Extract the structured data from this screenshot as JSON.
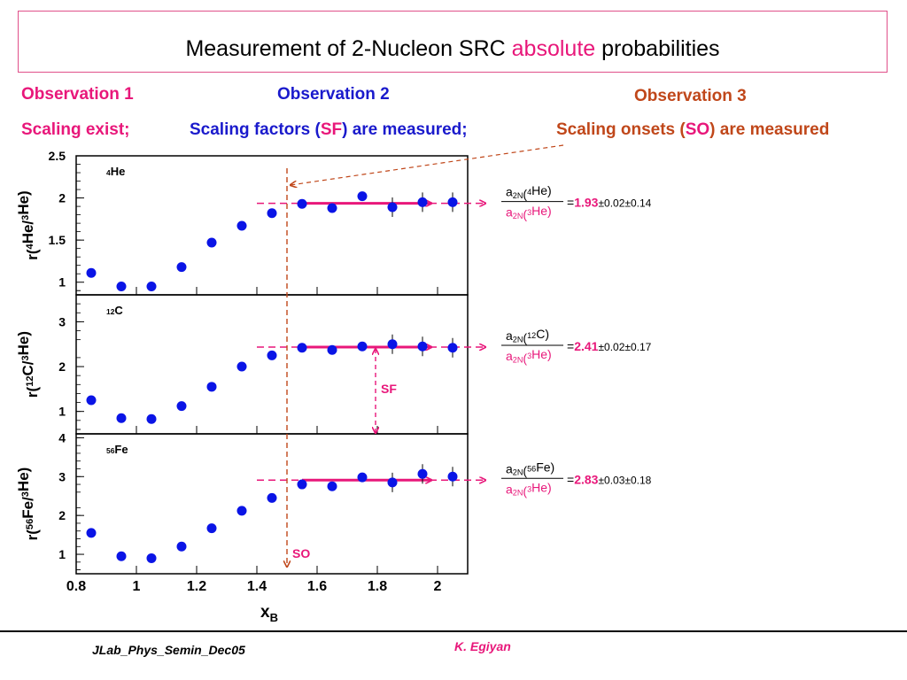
{
  "title": {
    "before": "Measurement of 2-Nucleon SRC ",
    "highlight": "absolute",
    "after": " probabilities"
  },
  "observations": {
    "obs1": {
      "heading": "Observation 1",
      "text": "Scaling exist;"
    },
    "obs2": {
      "heading": "Observation 2",
      "text_a": "Scaling factors (",
      "text_sf": "SF",
      "text_b": ") are measured;"
    },
    "obs3": {
      "heading": "Observation 3",
      "text_a": "Scaling onsets (",
      "text_so": "SO",
      "text_b": ") are measured"
    }
  },
  "colors": {
    "accent": "#e8177a",
    "blue": "#1a1acc",
    "orange": "#c0471a",
    "marker": "#0a14e6"
  },
  "annotations": {
    "sf": "SF",
    "so": "SO"
  },
  "footer": {
    "left": "JLab_Phys_Semin_Dec05",
    "right": "K. Egiyan"
  },
  "chart_data": [
    {
      "type": "scatter",
      "panel_label": "4He",
      "ylabel": "r(4He/3He)",
      "ylim": [
        0.85,
        2.5
      ],
      "yticks": [
        1,
        1.5,
        2,
        2.5
      ],
      "x": [
        0.85,
        0.95,
        1.05,
        1.15,
        1.25,
        1.35,
        1.45,
        1.55,
        1.65,
        1.75,
        1.85,
        1.95,
        2.05
      ],
      "y": [
        1.11,
        0.95,
        0.95,
        1.18,
        1.47,
        1.67,
        1.82,
        1.93,
        1.88,
        2.02,
        1.89,
        1.95,
        1.95
      ],
      "ratio": {
        "numerator": "a2N(4He)",
        "denominator": "a2N(3He)",
        "value": "1.93",
        "errors": "±0.02±0.14"
      }
    },
    {
      "type": "scatter",
      "panel_label": "12C",
      "ylabel": "r(12C/3He)",
      "ylim": [
        0.5,
        3.6
      ],
      "yticks": [
        1,
        2,
        3
      ],
      "x": [
        0.85,
        0.95,
        1.05,
        1.15,
        1.25,
        1.35,
        1.45,
        1.55,
        1.65,
        1.75,
        1.85,
        1.95,
        2.05
      ],
      "y": [
        1.25,
        0.85,
        0.83,
        1.12,
        1.55,
        2.0,
        2.25,
        2.42,
        2.37,
        2.45,
        2.5,
        2.45,
        2.42
      ],
      "ratio": {
        "numerator": "a2N(12C)",
        "denominator": "a2N(3He)",
        "value": "2.41",
        "errors": "±0.02±0.17"
      }
    },
    {
      "type": "scatter",
      "panel_label": "56Fe",
      "ylabel": "r(56Fe/3He)",
      "ylim": [
        0.5,
        4.1
      ],
      "yticks": [
        1,
        2,
        3,
        4
      ],
      "x": [
        0.85,
        0.95,
        1.05,
        1.15,
        1.25,
        1.35,
        1.45,
        1.55,
        1.65,
        1.75,
        1.85,
        1.95,
        2.05
      ],
      "y": [
        1.55,
        0.95,
        0.9,
        1.2,
        1.67,
        2.12,
        2.45,
        2.8,
        2.75,
        2.98,
        2.85,
        3.07,
        3.0
      ],
      "ratio": {
        "numerator": "a2N(56Fe)",
        "denominator": "a2N(3He)",
        "value": "2.83",
        "errors": "±0.03±0.18"
      }
    }
  ],
  "x_axis": {
    "label": "xB",
    "xlim": [
      0.8,
      2.1
    ],
    "ticks": [
      "0.8",
      "1",
      "1.2",
      "1.4",
      "1.6",
      "1.8",
      "2"
    ],
    "tick_values": [
      0.8,
      1.0,
      1.2,
      1.4,
      1.6,
      1.8,
      2.0
    ],
    "so_value": 1.5
  }
}
